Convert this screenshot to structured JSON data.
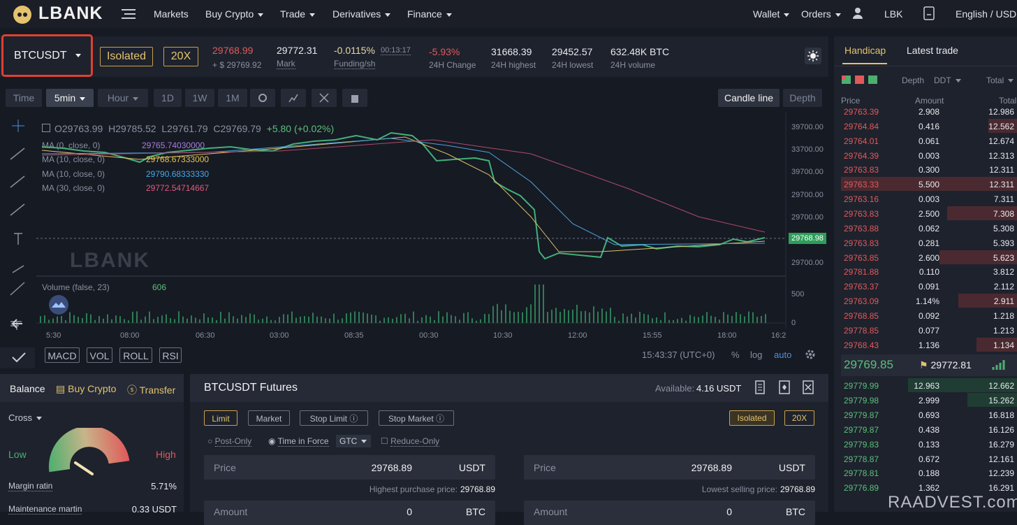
{
  "nav": {
    "logo": "LBANK",
    "menu": [
      "Markets",
      "Buy Crypto",
      "Trade",
      "Derivatives",
      "Finance"
    ],
    "right": [
      "Wallet",
      "Orders",
      "LBK",
      "English / USD"
    ]
  },
  "ticker": {
    "symbol": "BTCUSDT",
    "margin_mode": "Isolated",
    "leverage": "20X",
    "last_price": "29768.99",
    "last_price_usd": "+ $ 29769.92",
    "mark_price": "29772.31",
    "mark_label": "Mark",
    "funding_rate": "-0.0115%",
    "funding_countdown": "00:13:17",
    "funding_label": "Funding/sh",
    "stats": [
      {
        "value": "-5.93%",
        "label": "24H Change"
      },
      {
        "value": "31668.39",
        "label": "24H highest"
      },
      {
        "value": "29452.57",
        "label": "24H lowest"
      },
      {
        "value": "632.48K BTC",
        "label": "24H volume"
      }
    ]
  },
  "chart_toolbar": {
    "intervals": [
      "Time",
      "5min",
      "Hour",
      "1D",
      "1W",
      "1M"
    ],
    "views": [
      "Candle line",
      "Depth"
    ]
  },
  "chart": {
    "ohlc": {
      "open": "O29763.99",
      "high": "H29785.52",
      "low": "L29761.79",
      "close": "C29769.79",
      "change": "+5.80 (+0.02%)"
    },
    "indicators": [
      {
        "label": "MA (0, close, 0)",
        "value": "29765.74030000"
      },
      {
        "label": "MA (10, close, 0)",
        "value": "29768.67333000"
      },
      {
        "label": "MA (10, close, 0)",
        "value": "29790.68333330"
      },
      {
        "label": "MA (30, close, 0)",
        "value": "29772.54714667"
      }
    ],
    "volume": {
      "label": "Volume (false, 23)",
      "value": "606"
    },
    "watermark": "LBANK",
    "price_axis": [
      "39700.00",
      "33700.00",
      "39700.00",
      "29700.00",
      "29700.00",
      "29700.00"
    ],
    "current_price": "29768.98",
    "volume_axis": [
      "500",
      "0"
    ],
    "time_axis": [
      "5:30",
      "08:00",
      "06:30",
      "03:00",
      "08:35",
      "00:30",
      "10:30",
      "12:00",
      "15:55",
      "18:00",
      "16:2"
    ],
    "studies": [
      "MACD",
      "VOL",
      "ROLL",
      "RSI"
    ],
    "clock": "15:43:37 (UTC+0)",
    "scale_options": [
      "%",
      "log",
      "auto"
    ]
  },
  "order_book": {
    "tabs": [
      "Handicap",
      "Latest trade"
    ],
    "depth_label": "Depth",
    "precision": "DDT",
    "total_label": "Total",
    "columns": [
      "Price",
      "Amount",
      "Total"
    ],
    "asks": [
      [
        "29763.39",
        "2.908",
        "12.986"
      ],
      [
        "29764.84",
        "0.416",
        "12.562"
      ],
      [
        "29764.01",
        "0.061",
        "12.674"
      ],
      [
        "29764.39",
        "0.003",
        "12.313"
      ],
      [
        "29763.83",
        "0.300",
        "12.311"
      ],
      [
        "29763.33",
        "5.500",
        "12.311"
      ],
      [
        "29763.16",
        "0.003",
        "7.311"
      ],
      [
        "29763.83",
        "2.500",
        "7.308"
      ],
      [
        "29763.88",
        "0.062",
        "5.308"
      ],
      [
        "29763.83",
        "0.281",
        "5.393"
      ],
      [
        "29763.85",
        "2.600",
        "5.623"
      ],
      [
        "29781.88",
        "0.110",
        "3.812"
      ],
      [
        "29763.37",
        "0.091",
        "2.112"
      ],
      [
        "29763.09",
        "1.14%",
        "2.911"
      ],
      [
        "29768.85",
        "0.092",
        "1.218"
      ],
      [
        "29778.85",
        "0.077",
        "1.213"
      ],
      [
        "29768.43",
        "1.136",
        "1.134"
      ]
    ],
    "mid_price": "29769.85",
    "mark_price": "29772.81",
    "bids": [
      [
        "29779.99",
        "12.963",
        "12.662"
      ],
      [
        "29779.98",
        "2.999",
        "15.262"
      ],
      [
        "29779.87",
        "0.693",
        "16.818"
      ],
      [
        "29779.87",
        "0.438",
        "16.126"
      ],
      [
        "29779.83",
        "0.133",
        "16.279"
      ],
      [
        "29778.87",
        "0.672",
        "12.161"
      ],
      [
        "29778.81",
        "0.188",
        "12.239"
      ],
      [
        "29776.89",
        "1.362",
        "16.291"
      ]
    ]
  },
  "balance": {
    "tabs": [
      "Balance",
      "Buy Crypto",
      "Transfer"
    ],
    "margin_mode": "Cross",
    "gauge_low": "Low",
    "gauge_high": "High",
    "rows": [
      {
        "label": "Margin ratin",
        "value": "5.71%"
      },
      {
        "label": "Maintenance martin",
        "value": "0.33 USDT"
      }
    ]
  },
  "order_form": {
    "title": "BTCUSDT Futures",
    "available_label": "Available:",
    "available_value": "4.16 USDT",
    "order_types": [
      "Limit",
      "Market",
      "Stop Limit",
      "Stop Market"
    ],
    "margin_mode": "Isolated",
    "leverage": "20X",
    "options": [
      "Post-Only",
      "Time in Force",
      "Reduce-Only"
    ],
    "time_in_force": "GTC",
    "buy": {
      "price_label": "Price",
      "price": "29768.89",
      "price_unit": "USDT",
      "hint_label": "Highest purchase price:",
      "hint_value": "29768.89",
      "amount_label": "Amount",
      "amount": "0",
      "amount_unit": "BTC"
    },
    "sell": {
      "price_label": "Price",
      "price": "29768.89",
      "price_unit": "USDT",
      "hint_label": "Lowest selling price:",
      "hint_value": "29768.89",
      "amount_label": "Amount",
      "amount": "0",
      "amount_unit": "BTC"
    }
  },
  "watermark": "RAADVEST.com"
}
